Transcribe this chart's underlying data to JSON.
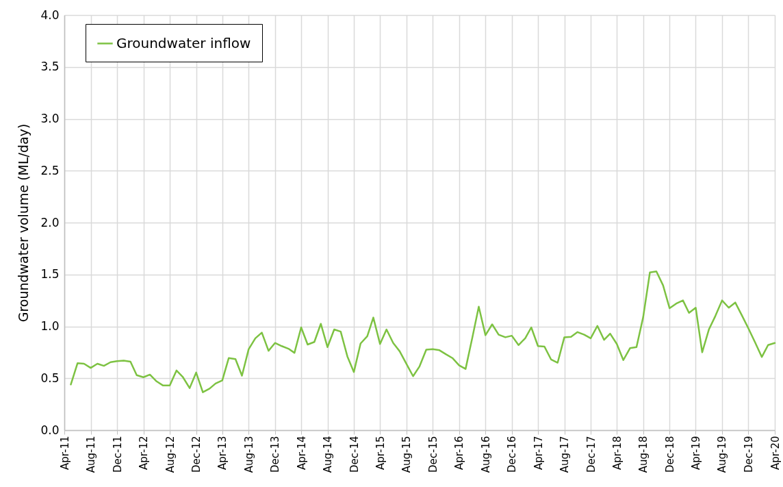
{
  "chart_data": {
    "type": "line",
    "ylabel": "Groundwater volume (ML/day)",
    "x": [
      "2011-05",
      "2011-06",
      "2011-07",
      "2011-08",
      "2011-09",
      "2011-10",
      "2011-11",
      "2011-12",
      "2012-01",
      "2012-02",
      "2012-03",
      "2012-04",
      "2012-05",
      "2012-06",
      "2012-07",
      "2012-08",
      "2012-09",
      "2012-10",
      "2012-11",
      "2012-12",
      "2013-01",
      "2013-02",
      "2013-03",
      "2013-04",
      "2013-05",
      "2013-06",
      "2013-07",
      "2013-08",
      "2013-09",
      "2013-10",
      "2013-11",
      "2013-12",
      "2014-01",
      "2014-02",
      "2014-03",
      "2014-04",
      "2014-05",
      "2014-06",
      "2014-07",
      "2014-08",
      "2014-09",
      "2014-10",
      "2014-11",
      "2014-12",
      "2015-01",
      "2015-02",
      "2015-03",
      "2015-04",
      "2015-05",
      "2015-06",
      "2015-07",
      "2015-08",
      "2015-09",
      "2015-10",
      "2015-11",
      "2015-12",
      "2016-01",
      "2016-02",
      "2016-03",
      "2016-04",
      "2016-05",
      "2016-06",
      "2016-07",
      "2016-08",
      "2016-09",
      "2016-10",
      "2016-11",
      "2016-12",
      "2017-01",
      "2017-02",
      "2017-03",
      "2017-04",
      "2017-05",
      "2017-06",
      "2017-07",
      "2017-08",
      "2017-09",
      "2017-10",
      "2017-11",
      "2017-12",
      "2018-01",
      "2018-02",
      "2018-03",
      "2018-04",
      "2018-05",
      "2018-06",
      "2018-07",
      "2018-08",
      "2018-09",
      "2018-10",
      "2018-11",
      "2018-12",
      "2019-01",
      "2019-02",
      "2019-03",
      "2019-04",
      "2019-05",
      "2019-06",
      "2019-07",
      "2019-08",
      "2019-09",
      "2019-10",
      "2019-11",
      "2019-12",
      "2020-01",
      "2020-02",
      "2020-03",
      "2020-04"
    ],
    "series": [
      {
        "name": "Groundwater inflow",
        "color": "#7dc242",
        "values": [
          0.44,
          0.645,
          0.64,
          0.6,
          0.64,
          0.62,
          0.655,
          0.665,
          0.67,
          0.66,
          0.53,
          0.51,
          0.535,
          0.47,
          0.43,
          0.43,
          0.575,
          0.51,
          0.405,
          0.555,
          0.365,
          0.4,
          0.45,
          0.48,
          0.695,
          0.685,
          0.525,
          0.78,
          0.885,
          0.94,
          0.765,
          0.84,
          0.81,
          0.785,
          0.745,
          0.99,
          0.825,
          0.85,
          1.025,
          0.8,
          0.97,
          0.95,
          0.71,
          0.56,
          0.835,
          0.905,
          1.085,
          0.83,
          0.97,
          0.84,
          0.76,
          0.64,
          0.52,
          0.615,
          0.775,
          0.78,
          0.77,
          0.73,
          0.695,
          0.625,
          0.59,
          0.89,
          1.19,
          0.915,
          1.02,
          0.92,
          0.895,
          0.91,
          0.82,
          0.885,
          0.99,
          0.81,
          0.805,
          0.68,
          0.65,
          0.895,
          0.9,
          0.945,
          0.92,
          0.885,
          1.005,
          0.87,
          0.93,
          0.83,
          0.675,
          0.79,
          0.8,
          1.09,
          1.52,
          1.53,
          1.395,
          1.175,
          1.22,
          1.25,
          1.13,
          1.18,
          0.75,
          0.97,
          1.1,
          1.25,
          1.18,
          1.23,
          1.105,
          0.98,
          0.845,
          0.705,
          0.82,
          0.84
        ]
      }
    ],
    "xlim": [
      "2011-04",
      "2020-04"
    ],
    "xticks": [
      {
        "value": "2011-04",
        "label": "Apr-11"
      },
      {
        "value": "2011-08",
        "label": "Aug-11"
      },
      {
        "value": "2011-12",
        "label": "Dec-11"
      },
      {
        "value": "2012-04",
        "label": "Apr-12"
      },
      {
        "value": "2012-08",
        "label": "Aug-12"
      },
      {
        "value": "2012-12",
        "label": "Dec-12"
      },
      {
        "value": "2013-04",
        "label": "Apr-13"
      },
      {
        "value": "2013-08",
        "label": "Aug-13"
      },
      {
        "value": "2013-12",
        "label": "Dec-13"
      },
      {
        "value": "2014-04",
        "label": "Apr-14"
      },
      {
        "value": "2014-08",
        "label": "Aug-14"
      },
      {
        "value": "2014-12",
        "label": "Dec-14"
      },
      {
        "value": "2015-04",
        "label": "Apr-15"
      },
      {
        "value": "2015-08",
        "label": "Aug-15"
      },
      {
        "value": "2015-12",
        "label": "Dec-15"
      },
      {
        "value": "2016-04",
        "label": "Apr-16"
      },
      {
        "value": "2016-08",
        "label": "Aug-16"
      },
      {
        "value": "2016-12",
        "label": "Dec-16"
      },
      {
        "value": "2017-04",
        "label": "Apr-17"
      },
      {
        "value": "2017-08",
        "label": "Aug-17"
      },
      {
        "value": "2017-12",
        "label": "Dec-17"
      },
      {
        "value": "2018-04",
        "label": "Apr-18"
      },
      {
        "value": "2018-08",
        "label": "Aug-18"
      },
      {
        "value": "2018-12",
        "label": "Dec-18"
      },
      {
        "value": "2019-04",
        "label": "Apr-19"
      },
      {
        "value": "2019-08",
        "label": "Aug-19"
      },
      {
        "value": "2019-12",
        "label": "Dec-19"
      },
      {
        "value": "2020-04",
        "label": "Apr-20"
      }
    ],
    "ylim": [
      0,
      4
    ],
    "yticks": [
      {
        "value": 0,
        "label": "0.0"
      },
      {
        "value": 0.5,
        "label": "0.5"
      },
      {
        "value": 1,
        "label": "1.0"
      },
      {
        "value": 1.5,
        "label": "1.5"
      },
      {
        "value": 2,
        "label": "2.0"
      },
      {
        "value": 2.5,
        "label": "2.5"
      },
      {
        "value": 3,
        "label": "3.0"
      },
      {
        "value": 3.5,
        "label": "3.5"
      },
      {
        "value": 4,
        "label": "4.0"
      }
    ],
    "grid": true,
    "legend": "top left",
    "marker": "none",
    "line_style": "solid"
  }
}
